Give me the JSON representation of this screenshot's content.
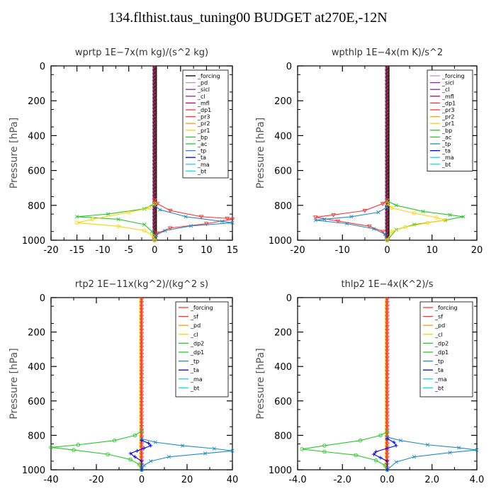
{
  "title": "134.flthist.taus_tuning00  BUDGET at270E,-12N",
  "chart_data": [
    {
      "type": "line",
      "title": "wprtp   1E−7x(m kg)/(s^2 kg)",
      "ylabel": "Pressure [hPa]",
      "xlim": [
        -20,
        15
      ],
      "ylim": [
        1000,
        0
      ],
      "xticks": [
        -20,
        -15,
        -10,
        -5,
        0,
        5,
        10,
        15
      ],
      "xtick_labels": [
        "-20",
        "-15",
        "-10",
        "-5",
        "0",
        "5",
        "10",
        "15"
      ],
      "yticks": [
        0,
        200,
        400,
        600,
        800,
        1000
      ],
      "legend": "top-right",
      "series": [
        {
          "name": "_forcing",
          "color": "#000000"
        },
        {
          "name": "_pd",
          "color": "#c88cc8"
        },
        {
          "name": "_sicl",
          "color": "#8c28a0"
        },
        {
          "name": "_cl",
          "color": "#8c28a0"
        },
        {
          "name": "_mfl",
          "color": "#c80050"
        },
        {
          "name": "_dp1",
          "color": "#ff3232"
        },
        {
          "name": "_pr3",
          "color": "#ff3232"
        },
        {
          "name": "_pr2",
          "color": "#ffa000"
        },
        {
          "name": "_pr1",
          "color": "#ffd200"
        },
        {
          "name": "_bp",
          "color": "#28c828"
        },
        {
          "name": "_ac",
          "color": "#28c828"
        },
        {
          "name": "_tp",
          "color": "#1e8cc8"
        },
        {
          "name": "_ta",
          "color": "#0000ff"
        },
        {
          "name": "_ma",
          "color": "#1ec8ff"
        },
        {
          "name": "_bt",
          "color": "#00e6e6"
        }
      ],
      "profiles": [
        {
          "color": "#ff3232",
          "marker": "tri",
          "points": [
            [
              0,
              770
            ],
            [
              0.5,
              790
            ],
            [
              3,
              830
            ],
            [
              9,
              865
            ],
            [
              14,
              875
            ],
            [
              15,
              880
            ],
            [
              10,
              905
            ],
            [
              3,
              930
            ],
            [
              0.5,
              960
            ],
            [
              0,
              1000
            ]
          ]
        },
        {
          "color": "#1e8cc8",
          "marker": "x",
          "points": [
            [
              0,
              800
            ],
            [
              1,
              825
            ],
            [
              6,
              865
            ],
            [
              13,
              892
            ],
            [
              15,
              900
            ],
            [
              7,
              918
            ],
            [
              2,
              945
            ],
            [
              0.3,
              970
            ],
            [
              0,
              1000
            ]
          ]
        },
        {
          "color": "#28c828",
          "marker": "x",
          "points": [
            [
              0,
              790
            ],
            [
              -2,
              820
            ],
            [
              -9,
              850
            ],
            [
              -15,
              865
            ],
            [
              -7,
              880
            ],
            [
              -2,
              910
            ],
            [
              -0.5,
              950
            ],
            [
              0,
              1000
            ]
          ]
        },
        {
          "color": "#ffd200",
          "marker": "circle",
          "points": [
            [
              0,
              790
            ],
            [
              -1,
              815
            ],
            [
              -5,
              840
            ],
            [
              -12,
              880
            ],
            [
              -15,
              900
            ],
            [
              -7,
              920
            ],
            [
              -2,
              945
            ],
            [
              -0.3,
              975
            ],
            [
              0,
              1000
            ]
          ]
        }
      ]
    },
    {
      "type": "line",
      "title": "wpthlp   1E−4x(m K)/s^2",
      "ylabel": "Pressure [hPa]",
      "xlim": [
        -20,
        20
      ],
      "ylim": [
        1000,
        0
      ],
      "xticks": [
        -20,
        -10,
        0,
        10,
        20
      ],
      "xtick_labels": [
        "-20",
        "-10",
        "0",
        "10",
        "20"
      ],
      "yticks": [
        0,
        200,
        400,
        600,
        800,
        1000
      ],
      "legend": "top-right",
      "series": [
        {
          "name": "_forcing",
          "color": "#c88cc8"
        },
        {
          "name": "_sicl",
          "color": "#8c28a0"
        },
        {
          "name": "_cl",
          "color": "#8c28a0"
        },
        {
          "name": "_mfl",
          "color": "#c80050"
        },
        {
          "name": "_dp1",
          "color": "#ff3232"
        },
        {
          "name": "_pr3",
          "color": "#ff3232"
        },
        {
          "name": "_pr2",
          "color": "#ffa000"
        },
        {
          "name": "_pr1",
          "color": "#ffd200"
        },
        {
          "name": "_bp",
          "color": "#28c828"
        },
        {
          "name": "_ac",
          "color": "#28c828"
        },
        {
          "name": "_tp",
          "color": "#1e8cc8"
        },
        {
          "name": "_ta",
          "color": "#0000ff"
        },
        {
          "name": "_ma",
          "color": "#1ec8ff"
        },
        {
          "name": "_bt",
          "color": "#00e6e6"
        }
      ],
      "profiles": [
        {
          "color": "#ff3232",
          "marker": "tri",
          "points": [
            [
              0,
              770
            ],
            [
              -1,
              790
            ],
            [
              -5,
              830
            ],
            [
              -12,
              855
            ],
            [
              -16,
              868
            ],
            [
              -11,
              890
            ],
            [
              -4,
              920
            ],
            [
              -1,
              950
            ],
            [
              0,
              1000
            ]
          ]
        },
        {
          "color": "#1e8cc8",
          "marker": "x",
          "points": [
            [
              0,
              810
            ],
            [
              -2,
              840
            ],
            [
              -8,
              865
            ],
            [
              -14,
              880
            ],
            [
              -16,
              885
            ],
            [
              -9,
              905
            ],
            [
              -3,
              935
            ],
            [
              -0.5,
              965
            ],
            [
              0,
              1000
            ]
          ]
        },
        {
          "color": "#28c828",
          "marker": "x",
          "points": [
            [
              0,
              775
            ],
            [
              2,
              800
            ],
            [
              8,
              835
            ],
            [
              14,
              855
            ],
            [
              17,
              865
            ],
            [
              13,
              885
            ],
            [
              6,
              910
            ],
            [
              2,
              940
            ],
            [
              0,
              1000
            ]
          ]
        },
        {
          "color": "#ffd200",
          "marker": "circle",
          "points": [
            [
              0,
              790
            ],
            [
              1,
              815
            ],
            [
              6,
              845
            ],
            [
              11,
              870
            ],
            [
              13,
              885
            ],
            [
              9,
              900
            ],
            [
              4,
              925
            ],
            [
              1,
              950
            ],
            [
              0,
              1000
            ]
          ]
        }
      ]
    },
    {
      "type": "line",
      "title": "rtp2   1E−11x(kg^2)/(kg^2 s)",
      "ylabel": "Pressure [hPa]",
      "xlim": [
        -40,
        40
      ],
      "ylim": [
        1000,
        0
      ],
      "xticks": [
        -40,
        -20,
        0,
        20,
        40
      ],
      "xtick_labels": [
        "-40",
        "-20",
        "0",
        "20",
        "40"
      ],
      "yticks": [
        0,
        200,
        400,
        600,
        800,
        1000
      ],
      "legend": "top-right",
      "series": [
        {
          "name": "_forcing",
          "color": "#ff3232"
        },
        {
          "name": "_sf",
          "color": "#ff3232"
        },
        {
          "name": "_pd",
          "color": "#ffa000"
        },
        {
          "name": "_cl",
          "color": "#ffd200"
        },
        {
          "name": "_dp2",
          "color": "#28c828"
        },
        {
          "name": "_dp1",
          "color": "#28c828"
        },
        {
          "name": "_tp",
          "color": "#1e8cc8"
        },
        {
          "name": "_ta",
          "color": "#0000ff"
        },
        {
          "name": "_ma",
          "color": "#1ec8ff"
        },
        {
          "name": "_bt",
          "color": "#00e6e6"
        }
      ],
      "profiles": [
        {
          "color": "#28c828",
          "marker": "circle",
          "points": [
            [
              0,
              775
            ],
            [
              -3,
              800
            ],
            [
              -12,
              830
            ],
            [
              -28,
              855
            ],
            [
              -40,
              870
            ],
            [
              -30,
              885
            ],
            [
              -15,
              910
            ],
            [
              -5,
              940
            ],
            [
              -1,
              970
            ],
            [
              0,
              1000
            ]
          ]
        },
        {
          "color": "#1e8cc8",
          "marker": "x",
          "points": [
            [
              0,
              820
            ],
            [
              6,
              840
            ],
            [
              18,
              860
            ],
            [
              32,
              877
            ],
            [
              40,
              890
            ],
            [
              28,
              905
            ],
            [
              12,
              925
            ],
            [
              4,
              950
            ],
            [
              1,
              975
            ],
            [
              0,
              1000
            ]
          ]
        },
        {
          "color": "#0000ff",
          "marker": "plus",
          "points": [
            [
              0,
              830
            ],
            [
              3,
              845
            ],
            [
              4,
              860
            ],
            [
              1,
              875
            ],
            [
              -2,
              890
            ],
            [
              -5,
              905
            ],
            [
              -3,
              925
            ],
            [
              0,
              950
            ],
            [
              0,
              1000
            ]
          ]
        }
      ]
    },
    {
      "type": "line",
      "title": "thlp2   1E−4x(K^2)/s",
      "ylabel": "Pressure [hPa]",
      "xlim": [
        -4,
        4
      ],
      "ylim": [
        1000,
        0
      ],
      "xticks": [
        -4,
        -2,
        0,
        2,
        4
      ],
      "xtick_labels": [
        "-4.0",
        "-2.0",
        "0.0",
        "2.0",
        "4.0"
      ],
      "yticks": [
        0,
        200,
        400,
        600,
        800,
        1000
      ],
      "legend": "top-right",
      "series": [
        {
          "name": "_forcing",
          "color": "#ff3232"
        },
        {
          "name": "_sf",
          "color": "#ff3232"
        },
        {
          "name": "_pd",
          "color": "#ffa000"
        },
        {
          "name": "_cl",
          "color": "#ffd200"
        },
        {
          "name": "_dp2",
          "color": "#28c828"
        },
        {
          "name": "_dp1",
          "color": "#28c828"
        },
        {
          "name": "_tp",
          "color": "#1e8cc8"
        },
        {
          "name": "_ta",
          "color": "#0000ff"
        },
        {
          "name": "_ma",
          "color": "#1ec8ff"
        },
        {
          "name": "_bt",
          "color": "#00e6e6"
        }
      ],
      "profiles": [
        {
          "color": "#28c828",
          "marker": "circle",
          "points": [
            [
              0,
              780
            ],
            [
              -0.3,
              800
            ],
            [
              -1.2,
              830
            ],
            [
              -2.8,
              860
            ],
            [
              -3.8,
              880
            ],
            [
              -2.8,
              895
            ],
            [
              -1.4,
              915
            ],
            [
              -0.5,
              945
            ],
            [
              -0.1,
              975
            ],
            [
              0,
              1000
            ]
          ]
        },
        {
          "color": "#1e8cc8",
          "marker": "x",
          "points": [
            [
              0,
              810
            ],
            [
              0.6,
              830
            ],
            [
              1.8,
              855
            ],
            [
              3.2,
              872
            ],
            [
              4,
              885
            ],
            [
              2.8,
              900
            ],
            [
              1.2,
              925
            ],
            [
              0.4,
              955
            ],
            [
              0,
              1000
            ]
          ]
        },
        {
          "color": "#0000ff",
          "marker": "plus",
          "points": [
            [
              0,
              820
            ],
            [
              0.3,
              840
            ],
            [
              0.4,
              860
            ],
            [
              0,
              875
            ],
            [
              -0.5,
              895
            ],
            [
              -0.6,
              910
            ],
            [
              -0.3,
              930
            ],
            [
              0,
              950
            ],
            [
              0,
              1000
            ]
          ]
        }
      ]
    }
  ]
}
